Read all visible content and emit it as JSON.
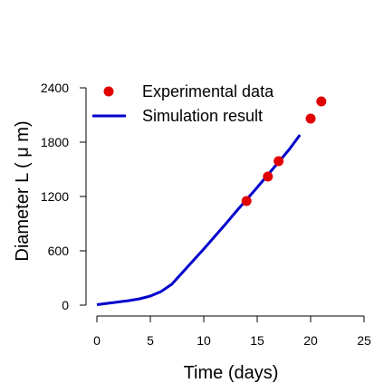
{
  "chart_data": {
    "type": "line",
    "xlabel": "Time (days)",
    "ylabel": "Diameter L ( μ m)",
    "xlim": [
      0,
      25
    ],
    "ylim": [
      0,
      2400
    ],
    "xticks": [
      0,
      5,
      10,
      15,
      20,
      25
    ],
    "yticks": [
      0,
      600,
      1200,
      1800,
      2400
    ],
    "grid": false,
    "legend_position": "top-left",
    "series": [
      {
        "name": "Experimental data",
        "kind": "scatter",
        "color": "#e00000",
        "x": [
          14,
          16,
          17,
          20,
          21
        ],
        "y": [
          1150,
          1420,
          1590,
          2060,
          2250
        ]
      },
      {
        "name": "Simulation result",
        "kind": "line",
        "color": "#0000cc",
        "x": [
          0,
          1,
          2,
          3,
          4,
          5,
          6,
          7,
          8,
          9,
          10,
          11,
          12,
          13,
          14,
          15,
          16,
          17,
          18,
          19
        ],
        "y": [
          5,
          20,
          35,
          50,
          70,
          100,
          150,
          230,
          360,
          490,
          620,
          755,
          890,
          1030,
          1165,
          1300,
          1440,
          1580,
          1720,
          1880
        ]
      }
    ]
  }
}
